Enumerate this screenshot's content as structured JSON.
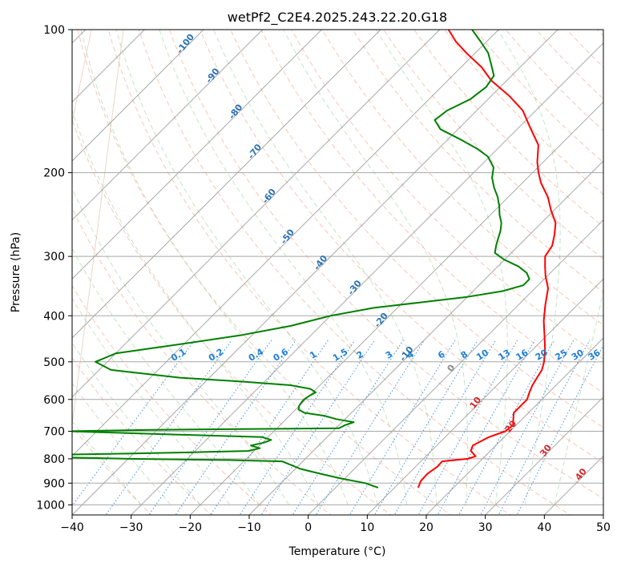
{
  "chart_data": {
    "type": "line",
    "title": "wetPf2_C2E4.2025.243.22.20.G18",
    "xlabel": "Temperature (°C)",
    "ylabel": "Pressure (hPa)",
    "xlim": [
      -40,
      50
    ],
    "ylim": [
      1050,
      100
    ],
    "y_scale": "log",
    "grid": true,
    "x_ticks": [
      -40,
      -30,
      -20,
      -10,
      0,
      10,
      20,
      30,
      40,
      50
    ],
    "y_ticks": [
      100,
      200,
      300,
      400,
      500,
      600,
      700,
      800,
      900,
      1000
    ],
    "skew_labels": [
      -100,
      -90,
      -80,
      -70,
      -60,
      -50,
      -40,
      -30,
      -20,
      -10,
      0,
      10,
      20,
      30,
      40
    ],
    "mixing_ratio_labels": [
      "0.1",
      "0.2",
      "0.4",
      "0.6",
      "1",
      "1.5",
      "2",
      "3",
      "4",
      "6",
      "8",
      "10",
      "13",
      "16",
      "20",
      "25",
      "30",
      "36"
    ],
    "series": [
      {
        "color": "#ff0000",
        "points": [
          [
            920,
            14
          ],
          [
            890,
            13.3
          ],
          [
            860,
            13.2
          ],
          [
            830,
            13.7
          ],
          [
            810,
            13.6
          ],
          [
            800,
            17.5
          ],
          [
            790,
            18.4
          ],
          [
            770,
            16.7
          ],
          [
            750,
            16.1
          ],
          [
            720,
            17.4
          ],
          [
            700,
            19.2
          ],
          [
            680,
            19.5
          ],
          [
            660,
            18.5
          ],
          [
            640,
            17.5
          ],
          [
            620,
            17.5
          ],
          [
            600,
            17.5
          ],
          [
            580,
            16.7
          ],
          [
            560,
            16.0
          ],
          [
            540,
            15.5
          ],
          [
            520,
            15.0
          ],
          [
            500,
            14.0
          ],
          [
            470,
            12.0
          ],
          [
            440,
            9.6
          ],
          [
            410,
            7.0
          ],
          [
            380,
            4.6
          ],
          [
            350,
            2.2
          ],
          [
            330,
            -0.3
          ],
          [
            315,
            -2.0
          ],
          [
            300,
            -3.7
          ],
          [
            285,
            -4.3
          ],
          [
            270,
            -5.8
          ],
          [
            255,
            -7.6
          ],
          [
            240,
            -10.5
          ],
          [
            225,
            -13.3
          ],
          [
            210,
            -16.9
          ],
          [
            200,
            -19.0
          ],
          [
            190,
            -21.0
          ],
          [
            175,
            -23.7
          ],
          [
            160,
            -28.3
          ],
          [
            148,
            -32.2
          ],
          [
            138,
            -36.9
          ],
          [
            128,
            -42.6
          ],
          [
            120,
            -46.5
          ],
          [
            112,
            -51.5
          ],
          [
            106,
            -55.2
          ],
          [
            100,
            -58.5
          ]
        ]
      },
      {
        "color": "#008000",
        "points": [
          [
            920,
            7.2
          ],
          [
            900,
            4.3
          ],
          [
            880,
            -0.6
          ],
          [
            860,
            -4.9
          ],
          [
            840,
            -9.1
          ],
          [
            820,
            -12.0
          ],
          [
            810,
            -13.5
          ],
          [
            805,
            -22.5
          ],
          [
            800,
            -40.0
          ],
          [
            795,
            -50.0
          ],
          [
            785,
            -55.0
          ],
          [
            780,
            -41.0
          ],
          [
            775,
            -30.0
          ],
          [
            770,
            -21.0
          ],
          [
            760,
            -19.5
          ],
          [
            750,
            -21.5
          ],
          [
            740,
            -19.8
          ],
          [
            730,
            -19.0
          ],
          [
            720,
            -21.0
          ],
          [
            710,
            -38.0
          ],
          [
            700,
            -55.0
          ],
          [
            695,
            -41.0
          ],
          [
            690,
            -9.5
          ],
          [
            680,
            -9.0
          ],
          [
            670,
            -8.0
          ],
          [
            660,
            -11.5
          ],
          [
            650,
            -13.9
          ],
          [
            640,
            -18.0
          ],
          [
            630,
            -19.5
          ],
          [
            620,
            -20.0
          ],
          [
            610,
            -20.2
          ],
          [
            600,
            -20.3
          ],
          [
            590,
            -20.0
          ],
          [
            580,
            -19.5
          ],
          [
            570,
            -21.0
          ],
          [
            560,
            -25.0
          ],
          [
            550,
            -34.0
          ],
          [
            540,
            -45.0
          ],
          [
            520,
            -58.0
          ],
          [
            500,
            -62.0
          ],
          [
            480,
            -60.0
          ],
          [
            460,
            -51.0
          ],
          [
            440,
            -42.0
          ],
          [
            420,
            -35.0
          ],
          [
            400,
            -30.0
          ],
          [
            385,
            -24.0
          ],
          [
            375,
            -17.0
          ],
          [
            365,
            -10.0
          ],
          [
            355,
            -5.0
          ],
          [
            345,
            -2.5
          ],
          [
            335,
            -2.5
          ],
          [
            325,
            -4.0
          ],
          [
            315,
            -6.5
          ],
          [
            305,
            -10.0
          ],
          [
            295,
            -12.8
          ],
          [
            285,
            -13.8
          ],
          [
            275,
            -14.7
          ],
          [
            265,
            -15.6
          ],
          [
            255,
            -16.8
          ],
          [
            245,
            -18.5
          ],
          [
            235,
            -20.0
          ],
          [
            225,
            -21.8
          ],
          [
            215,
            -24.0
          ],
          [
            205,
            -26.0
          ],
          [
            195,
            -27.5
          ],
          [
            185,
            -30.3
          ],
          [
            178,
            -33.5
          ],
          [
            170,
            -38.0
          ],
          [
            162,
            -43.0
          ],
          [
            155,
            -45.5
          ],
          [
            148,
            -45.0
          ],
          [
            140,
            -43.0
          ],
          [
            132,
            -42.4
          ],
          [
            125,
            -43.0
          ],
          [
            118,
            -45.5
          ],
          [
            112,
            -47.8
          ],
          [
            106,
            -51.0
          ],
          [
            100,
            -54.5
          ]
        ]
      }
    ]
  }
}
